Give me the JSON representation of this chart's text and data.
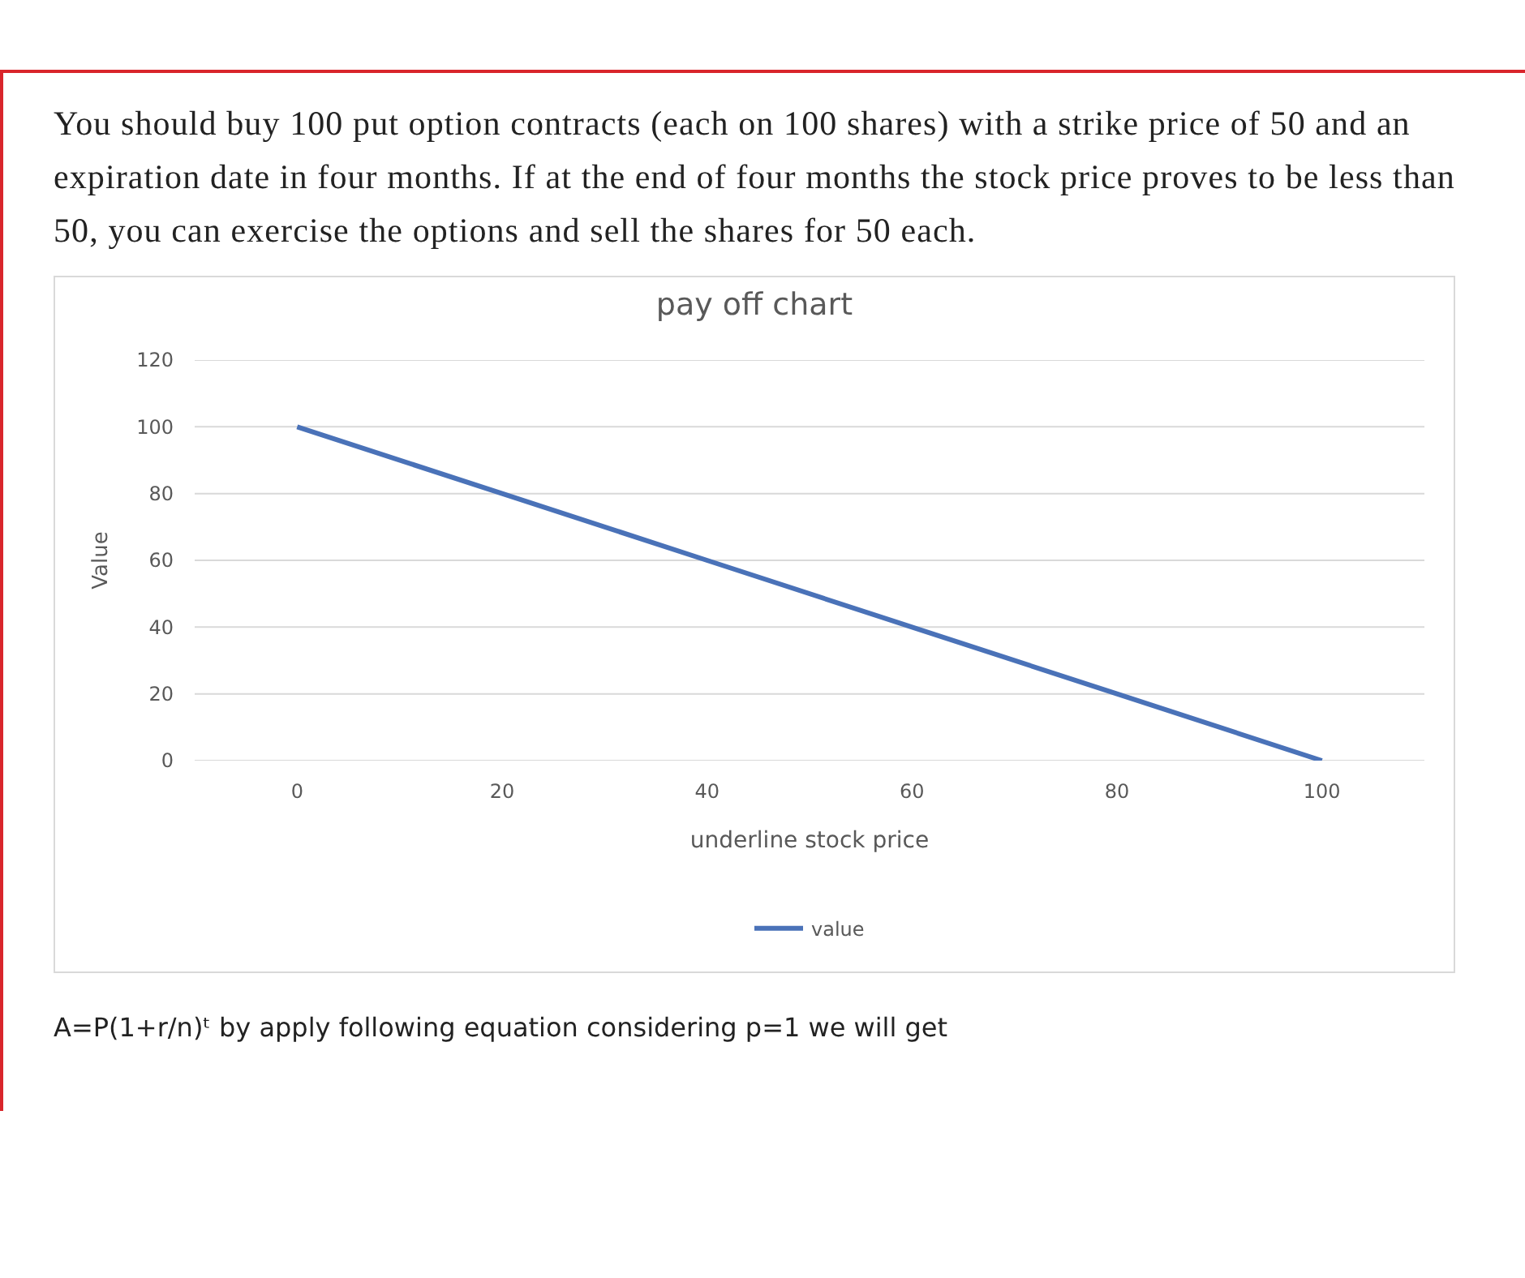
{
  "chart_data": {
    "type": "line",
    "title": "pay off chart",
    "xlabel": "underline stock price",
    "ylabel": "Value",
    "annotations": [
      "You should buy 100 put option contracts (each on 100 shares) with a strike price of 50 and an expiration date in four months. If at the end of four months the stock price proves to be less than 50, you can exercise the options and sell the shares for 50 each.",
      "A=P(1+r/n)ᵗ by apply following equation considering p=1 we will get"
    ],
    "categories": [
      "0",
      "20",
      "40",
      "60",
      "80",
      "100"
    ],
    "series": [
      {
        "name": "value",
        "color": "#4a72b8",
        "values": [
          100,
          80,
          60,
          40,
          20,
          0
        ]
      }
    ],
    "ylim": [
      0,
      120
    ],
    "yticks": [
      0,
      20,
      40,
      60,
      80,
      100,
      120
    ],
    "grid": "y",
    "legend": "bottom"
  }
}
